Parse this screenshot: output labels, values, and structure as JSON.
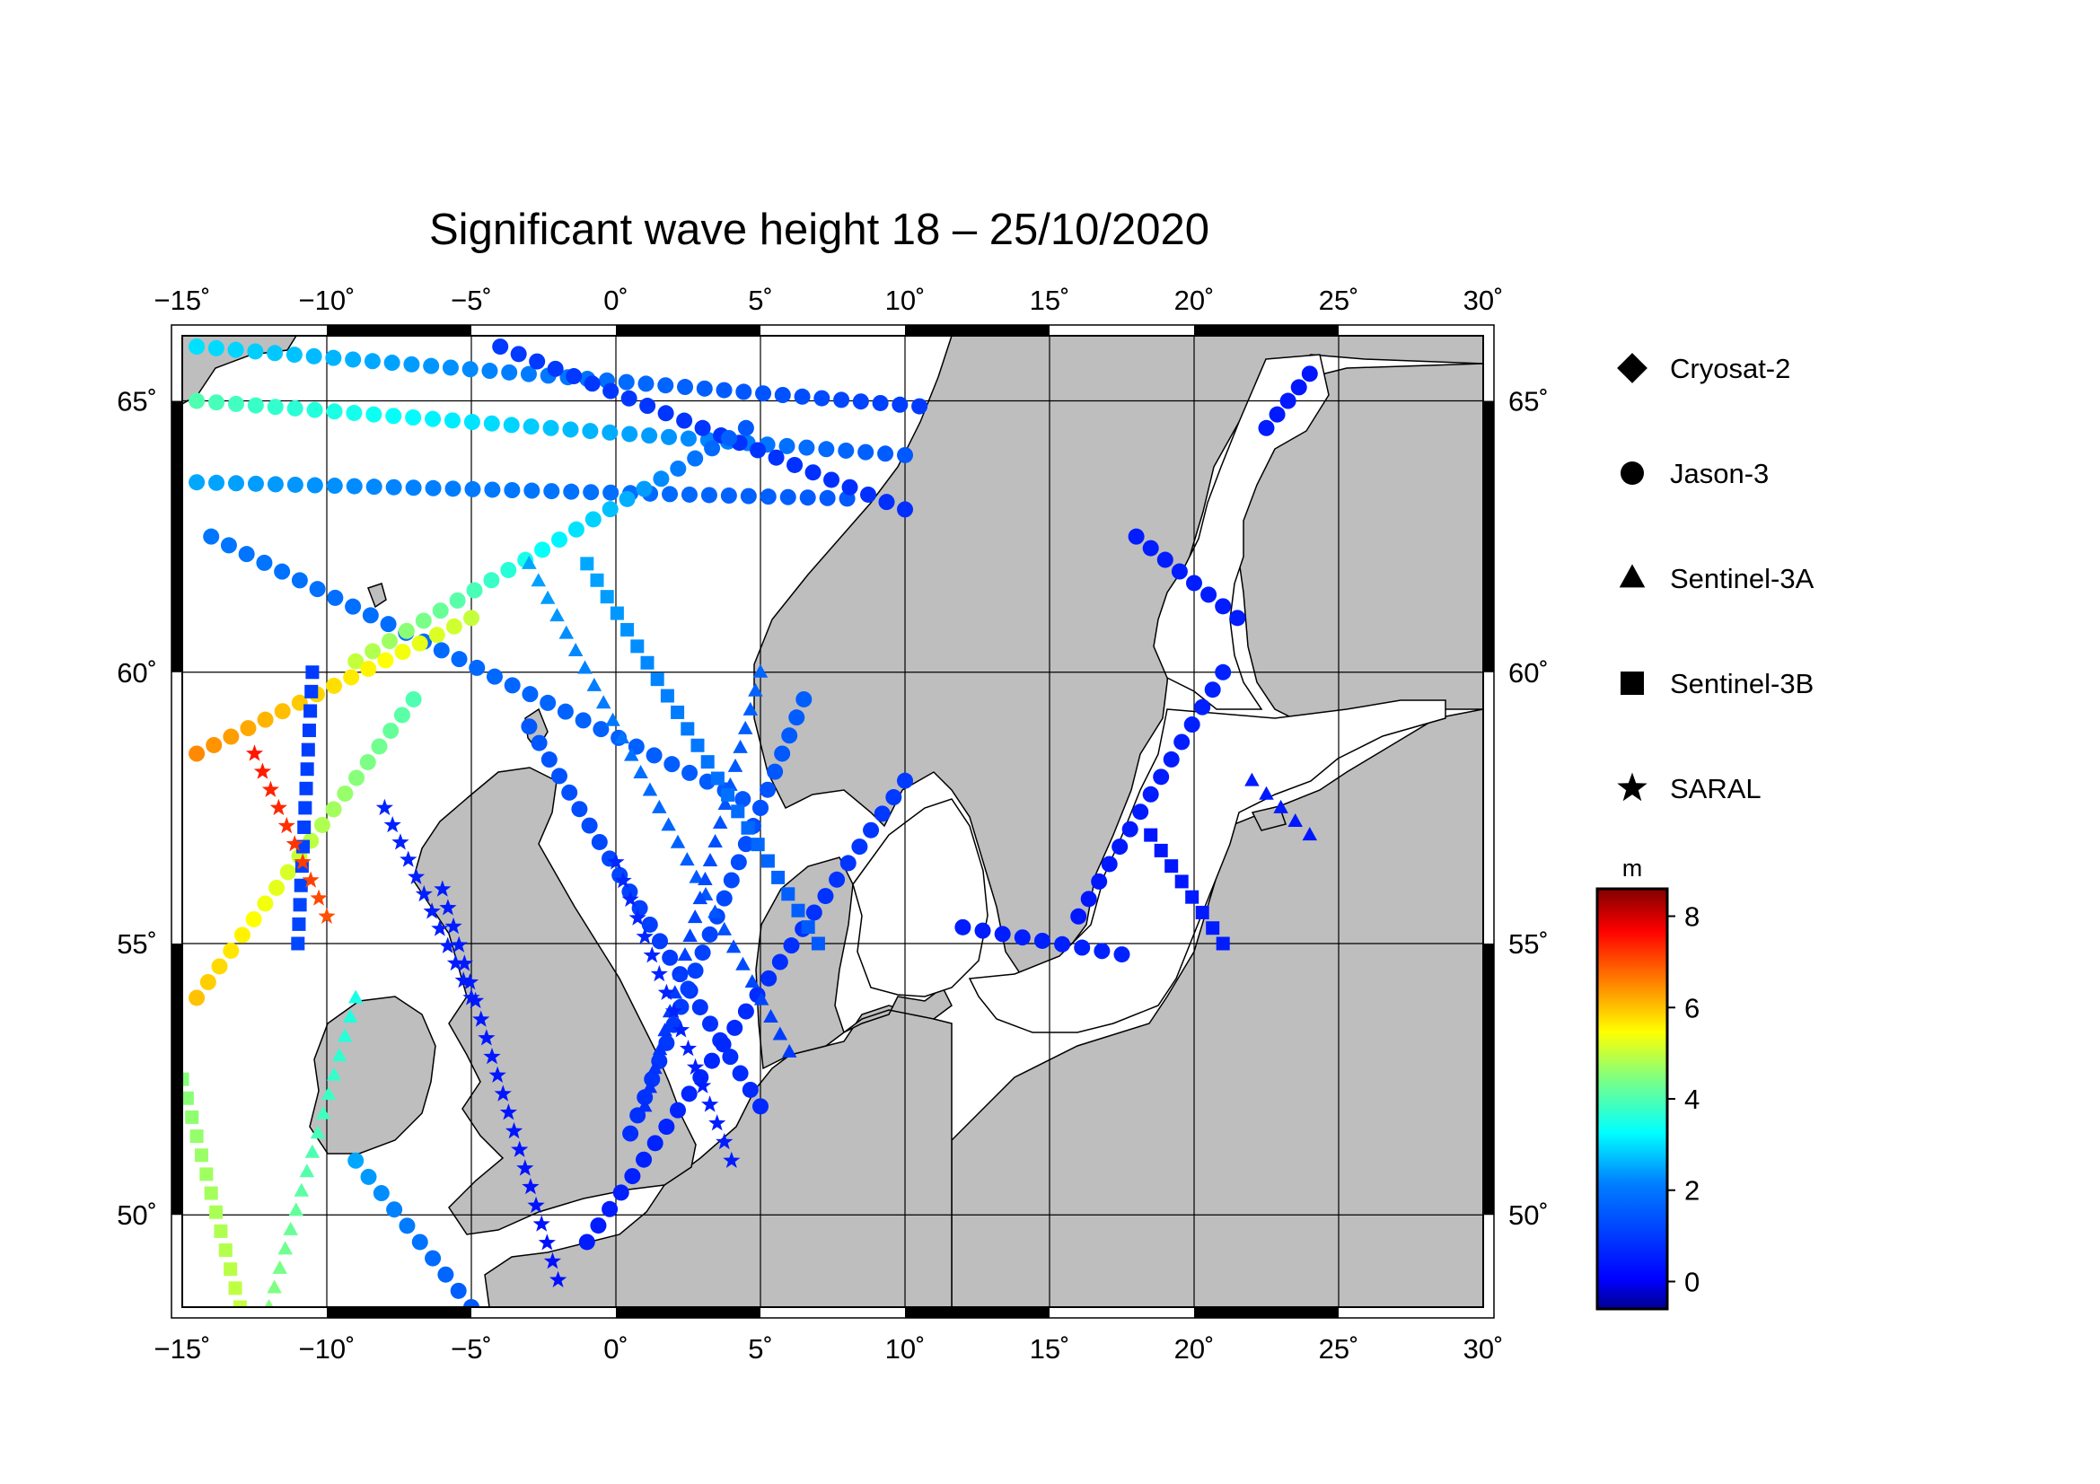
{
  "title": "Significant wave height 18 – 25/10/2020",
  "map": {
    "lon_range": [
      -15,
      30
    ],
    "lat_range": [
      48.3,
      66.2
    ],
    "lon_ticks": [
      {
        "value": -15,
        "label": "−15˚"
      },
      {
        "value": -10,
        "label": "−10˚"
      },
      {
        "value": -5,
        "label": "−5˚"
      },
      {
        "value": 0,
        "label": "0˚"
      },
      {
        "value": 5,
        "label": "5˚"
      },
      {
        "value": 10,
        "label": "10˚"
      },
      {
        "value": 15,
        "label": "15˚"
      },
      {
        "value": 20,
        "label": "20˚"
      },
      {
        "value": 25,
        "label": "25˚"
      },
      {
        "value": 30,
        "label": "30˚"
      }
    ],
    "lat_ticks": [
      {
        "value": 50,
        "label": "50˚"
      },
      {
        "value": 55,
        "label": "55˚"
      },
      {
        "value": 60,
        "label": "60˚"
      },
      {
        "value": 65,
        "label": "65˚"
      }
    ],
    "land_color": "#bebebe",
    "sea_color": "#ffffff"
  },
  "legend": {
    "satellites": [
      {
        "name": "Cryosat-2",
        "marker": "diamond"
      },
      {
        "name": "Jason-3",
        "marker": "circle"
      },
      {
        "name": "Sentinel-3A",
        "marker": "triangle"
      },
      {
        "name": "Sentinel-3B",
        "marker": "square"
      },
      {
        "name": "SARAL",
        "marker": "star"
      }
    ]
  },
  "colorbar": {
    "unit": "m",
    "min": -0.6,
    "max": 8.6,
    "ticks": [
      {
        "value": 0,
        "label": "0"
      },
      {
        "value": 2,
        "label": "2"
      },
      {
        "value": 4,
        "label": "4"
      },
      {
        "value": 6,
        "label": "6"
      },
      {
        "value": 8,
        "label": "8"
      }
    ],
    "colormap": [
      "#00008f",
      "#0000ff",
      "#0080ff",
      "#00ffff",
      "#80ff80",
      "#ffff00",
      "#ff8000",
      "#ff0000",
      "#800000"
    ]
  },
  "chart_data": {
    "type": "scatter",
    "title": "Significant wave height 18 – 25/10/2020",
    "xlabel": "",
    "ylabel": "",
    "xlim": [
      -15,
      30
    ],
    "ylim": [
      48.3,
      66.2
    ],
    "color_variable": "significant wave height (m)",
    "tracks": [
      {
        "satellite": "Jason-3",
        "lon": [
          -14.5,
          10.5
        ],
        "lat": [
          66.0,
          64.9
        ],
        "hs": [
          3.0,
          1.0
        ]
      },
      {
        "satellite": "Jason-3",
        "lon": [
          -14.5,
          10.0
        ],
        "lat": [
          65.0,
          64.0
        ],
        "hs": [
          4.0,
          1.5
        ]
      },
      {
        "satellite": "Jason-3",
        "lon": [
          -14.5,
          8.0
        ],
        "lat": [
          63.5,
          63.2
        ],
        "hs": [
          2.5,
          1.5
        ]
      },
      {
        "satellite": "Jason-3",
        "lon": [
          -14.0,
          5.0
        ],
        "lat": [
          62.5,
          57.5
        ],
        "hs": [
          2.0,
          1.5
        ]
      },
      {
        "satellite": "Jason-3",
        "lon": [
          -4.0,
          10.0
        ],
        "lat": [
          66.0,
          63.0
        ],
        "hs": [
          1.0,
          0.8
        ]
      },
      {
        "satellite": "Jason-3",
        "lon": [
          -9.0,
          4.5
        ],
        "lat": [
          60.2,
          64.5
        ],
        "hs": [
          5.0,
          1.5
        ]
      },
      {
        "satellite": "Jason-3",
        "lon": [
          -14.5,
          -5.0
        ],
        "lat": [
          58.5,
          61.0
        ],
        "hs": [
          6.5,
          5.0
        ]
      },
      {
        "satellite": "Jason-3",
        "lon": [
          -14.5,
          -7.0
        ],
        "lat": [
          54.0,
          59.5
        ],
        "hs": [
          6.0,
          4.0
        ]
      },
      {
        "satellite": "Jason-3",
        "lon": [
          -3.0,
          5.0
        ],
        "lat": [
          59.0,
          52.0
        ],
        "hs": [
          1.5,
          0.7
        ]
      },
      {
        "satellite": "Jason-3",
        "lon": [
          0.5,
          6.5
        ],
        "lat": [
          51.5,
          59.5
        ],
        "hs": [
          0.8,
          1.6
        ]
      },
      {
        "satellite": "Jason-3",
        "lon": [
          -1.0,
          10.0
        ],
        "lat": [
          49.5,
          58.0
        ],
        "hs": [
          0.5,
          1.0
        ]
      },
      {
        "satellite": "Jason-3",
        "lon": [
          -9.0,
          -5.0
        ],
        "lat": [
          51.0,
          48.3
        ],
        "hs": [
          2.5,
          1.5
        ]
      },
      {
        "satellite": "Jason-3",
        "lon": [
          16.0,
          21.0
        ],
        "lat": [
          55.5,
          60.0
        ],
        "hs": [
          0.4,
          0.6
        ]
      },
      {
        "satellite": "Jason-3",
        "lon": [
          18.0,
          21.5
        ],
        "lat": [
          62.5,
          61.0
        ],
        "hs": [
          0.5,
          0.5
        ]
      },
      {
        "satellite": "Jason-3",
        "lon": [
          22.5,
          24.0
        ],
        "lat": [
          64.5,
          65.5
        ],
        "hs": [
          0.5,
          0.4
        ]
      },
      {
        "satellite": "Jason-3",
        "lon": [
          12.0,
          17.5
        ],
        "lat": [
          55.3,
          54.8
        ],
        "hs": [
          0.5,
          0.6
        ]
      },
      {
        "satellite": "Sentinel-3A",
        "lon": [
          -3.0,
          6.0
        ],
        "lat": [
          62.0,
          53.0
        ],
        "hs": [
          2.5,
          1.0
        ]
      },
      {
        "satellite": "Sentinel-3A",
        "lon": [
          -12.0,
          -9.0
        ],
        "lat": [
          48.3,
          54.0
        ],
        "hs": [
          4.5,
          3.5
        ]
      },
      {
        "satellite": "Sentinel-3A",
        "lon": [
          5.0,
          1.0
        ],
        "lat": [
          60.0,
          52.0
        ],
        "hs": [
          1.7,
          0.8
        ]
      },
      {
        "satellite": "Sentinel-3A",
        "lon": [
          22.0,
          24.0
        ],
        "lat": [
          58.0,
          57.0
        ],
        "hs": [
          0.5,
          0.4
        ]
      },
      {
        "satellite": "Sentinel-3B",
        "lon": [
          -15.0,
          -13.0
        ],
        "lat": [
          52.5,
          48.3
        ],
        "hs": [
          4.5,
          5.0
        ]
      },
      {
        "satellite": "Sentinel-3B",
        "lon": [
          -10.5,
          -11.0
        ],
        "lat": [
          60.0,
          55.0
        ],
        "hs": [
          1.0,
          1.2
        ]
      },
      {
        "satellite": "Sentinel-3B",
        "lon": [
          -1.0,
          7.0
        ],
        "lat": [
          62.0,
          55.0
        ],
        "hs": [
          2.5,
          1.5
        ]
      },
      {
        "satellite": "Sentinel-3B",
        "lon": [
          18.5,
          21.0
        ],
        "lat": [
          57.0,
          55.0
        ],
        "hs": [
          0.4,
          0.5
        ]
      },
      {
        "satellite": "SARAL",
        "lon": [
          -8.0,
          -5.0
        ],
        "lat": [
          57.5,
          54.0
        ],
        "hs": [
          0.6,
          0.5
        ]
      },
      {
        "satellite": "SARAL",
        "lon": [
          -6.0,
          -2.0
        ],
        "lat": [
          56.0,
          48.8
        ],
        "hs": [
          0.5,
          0.3
        ]
      },
      {
        "satellite": "SARAL",
        "lon": [
          0.0,
          4.0
        ],
        "lat": [
          56.5,
          51.0
        ],
        "hs": [
          0.7,
          0.5
        ]
      },
      {
        "satellite": "SARAL",
        "lon": [
          -12.5,
          -10.0
        ],
        "lat": [
          58.5,
          55.5
        ],
        "hs": [
          7.5,
          7.0
        ]
      }
    ]
  }
}
